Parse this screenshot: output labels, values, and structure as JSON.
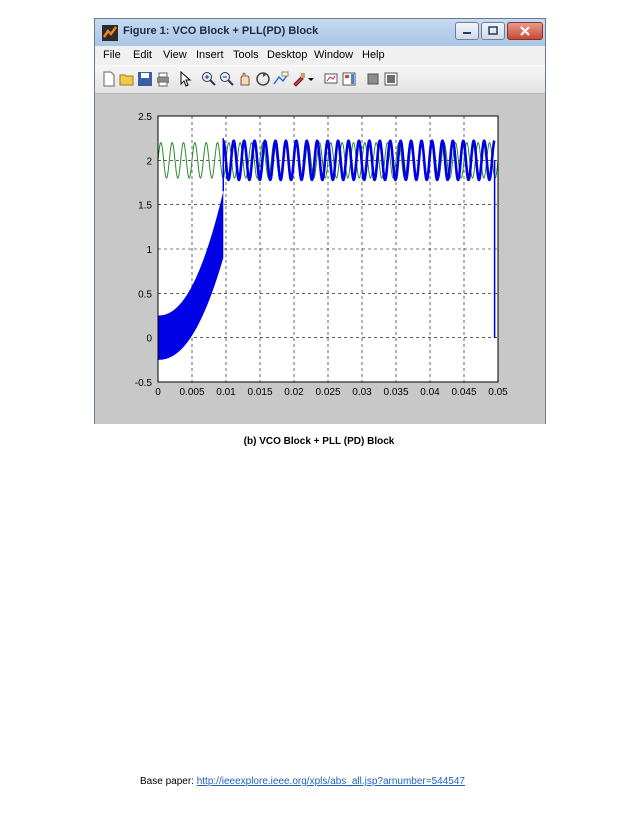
{
  "window": {
    "title": "Figure 1: VCO Block + PLL(PD) Block",
    "menu": [
      "File",
      "Edit",
      "View",
      "Insert",
      "Tools",
      "Desktop",
      "Window",
      "Help"
    ],
    "toolbar_icons": [
      "new-figure-icon",
      "open-folder-icon",
      "save-icon",
      "print-icon",
      "edit-plot-arrow-icon",
      "zoom-in-icon",
      "zoom-out-icon",
      "rotate-3d-icon",
      "data-cursor-icon",
      "brush-icon",
      "brush-dropdown-icon",
      "link-plot-icon",
      "insert-colorbar-icon",
      "hide-plot-tools-icon",
      "show-plot-tools-icon"
    ]
  },
  "chart_data": {
    "type": "line",
    "title": "",
    "xlabel": "",
    "ylabel": "",
    "xlim": [
      0,
      0.05
    ],
    "ylim": [
      -0.5,
      2.5
    ],
    "x_ticks": [
      "0",
      "0.005",
      "0.01",
      "0.015",
      "0.02",
      "0.025",
      "0.03",
      "0.035",
      "0.04",
      "0.045",
      "0.05"
    ],
    "y_ticks": [
      "-0.5",
      "0",
      "0.5",
      "1",
      "1.5",
      "2",
      "2.5"
    ],
    "grid": true,
    "series": [
      {
        "color": "#2e8b2e",
        "description_values": {
          "x_start": 0,
          "x_end": 0.05,
          "center": 2.0,
          "amplitude": 0.2,
          "cycles": 30
        }
      },
      {
        "color": "#0000e6",
        "description_values": {
          "segment1_x": [
            0,
            0.0096
          ],
          "segment1_y_start": [
            -0.25,
            0.25
          ],
          "segment1_y_end": [
            0.9,
            1.65
          ],
          "segment2_x": [
            0.0096,
            0.0495
          ],
          "segment2_center": 2.0,
          "segment2_amplitude": 0.22
        }
      }
    ],
    "colors": {
      "axes_bg": "#ffffff",
      "figure_bg": "#c8c8c8",
      "grid": "#000000"
    }
  },
  "caption": "(b) VCO Block + PLL (PD) Block",
  "footer": {
    "label": "Base paper: ",
    "link": "http://ieeexplore.ieee.org/xpls/abs_all.jsp?arnumber=544547"
  }
}
